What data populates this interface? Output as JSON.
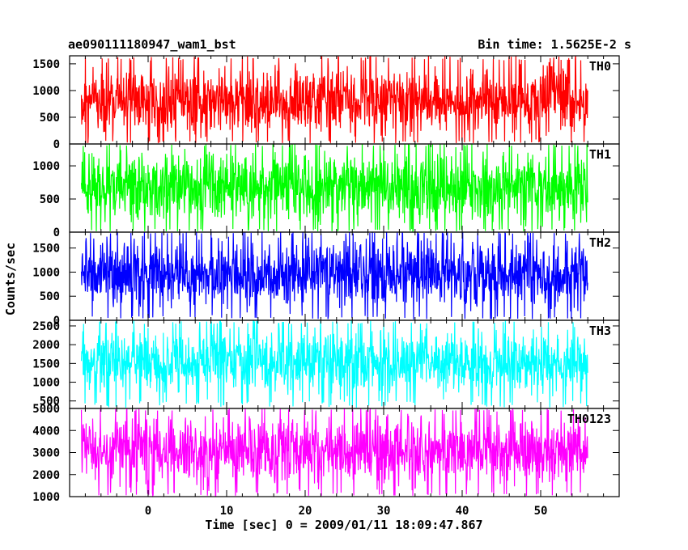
{
  "header": {
    "title": "ae090111180947_wam1_bst",
    "bin_time": "Bin time: 1.5625E-2 s"
  },
  "chart_data": {
    "type": "line",
    "title": "ae090111180947_wam1_bst",
    "xlabel": "Time [sec] 0 = 2009/01/11 18:09:47.867",
    "ylabel": "Counts/sec",
    "xlim": [
      -10,
      60
    ],
    "x_ticks": [
      0,
      10,
      20,
      30,
      40,
      50
    ],
    "x_tick_labels": [
      "0",
      "10",
      "20",
      "30",
      "40",
      "50"
    ],
    "data_x_range": [
      -8.5,
      56.0
    ],
    "bin_time_s": 0.015625,
    "panels": [
      {
        "series_name": "TH0",
        "color": "#ff0000",
        "ylim": [
          0,
          1650
        ],
        "y_ticks": [
          0,
          500,
          1000,
          1500
        ],
        "y_tick_labels": [
          "0",
          "500",
          "1000",
          "1500"
        ],
        "approx_mean": 650,
        "approx_low": 60,
        "approx_high": 1560
      },
      {
        "series_name": "TH1",
        "color": "#00ff00",
        "ylim": [
          0,
          1330
        ],
        "y_ticks": [
          0,
          500,
          1000
        ],
        "y_tick_labels": [
          "0",
          "500",
          "1000"
        ],
        "approx_mean": 620,
        "approx_low": 50,
        "approx_high": 1300
      },
      {
        "series_name": "TH2",
        "color": "#0000ff",
        "ylim": [
          0,
          1830
        ],
        "y_ticks": [
          0,
          500,
          1000,
          1500
        ],
        "y_tick_labels": [
          "0",
          "500",
          "1000",
          "1500"
        ],
        "approx_mean": 720,
        "approx_low": 100,
        "approx_high": 1800
      },
      {
        "series_name": "TH3",
        "color": "#00ffff",
        "ylim": [
          300,
          2650
        ],
        "y_ticks": [
          500,
          1000,
          1500,
          2000,
          2500
        ],
        "y_tick_labels": [
          "500",
          "1000",
          "1500",
          "2000",
          "2500"
        ],
        "approx_mean": 1400,
        "approx_low": 500,
        "approx_high": 2550
      },
      {
        "series_name": "TH0123",
        "color": "#ff00ff",
        "ylim": [
          1000,
          5000
        ],
        "y_ticks": [
          1000,
          2000,
          3000,
          4000,
          5000
        ],
        "y_tick_labels": [
          "1000",
          "2000",
          "3000",
          "4000",
          "5000"
        ],
        "approx_mean": 3000,
        "approx_low": 1200,
        "approx_high": 4900
      }
    ]
  }
}
